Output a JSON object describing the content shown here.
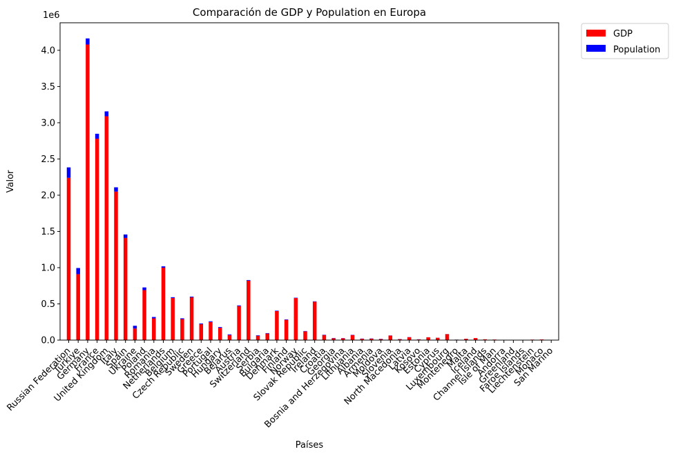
{
  "chart_data": {
    "type": "bar",
    "stacked": true,
    "title": "Comparación de GDP y Population en Europa",
    "xlabel": "Países",
    "ylabel": "Valor",
    "offset_text": "1e6",
    "ylim": [
      0,
      4.38
    ],
    "yticks": [
      0.0,
      0.5,
      1.0,
      1.5,
      2.0,
      2.5,
      3.0,
      3.5,
      4.0
    ],
    "ytick_labels": [
      "0.0",
      "0.5",
      "1.0",
      "1.5",
      "2.0",
      "2.5",
      "3.0",
      "3.5",
      "4.0"
    ],
    "legend_position": "upper-right-outside",
    "categories": [
      "Russian Federation",
      "Türkiye",
      "Germany",
      "France",
      "United Kingdom",
      "Italy",
      "Spain",
      "Ukraine",
      "Poland",
      "Romania",
      "Netherlands",
      "Belgium",
      "Czech Republic",
      "Sweden",
      "Greece",
      "Portugal",
      "Hungary",
      "Belarus",
      "Austria",
      "Switzerland",
      "Serbia",
      "Bulgaria",
      "Denmark",
      "Finland",
      "Norway",
      "Slovak Republic",
      "Ireland",
      "Croatia",
      "Georgia",
      "Bosnia and Herzegovina",
      "Lithuania",
      "Albania",
      "Armenia",
      "Moldova",
      "Slovenia",
      "North Macedonia",
      "Latvia",
      "Kosovo",
      "Estonia",
      "Cyprus",
      "Luxembourg",
      "Montenegro",
      "Malta",
      "Iceland",
      "Channel Islands",
      "Isle of Man",
      "Andorra",
      "Greenland",
      "Faroe Islands",
      "Liechtenstein",
      "Monaco",
      "San Marino"
    ],
    "series": [
      {
        "name": "GDP",
        "color": "#ff0000",
        "values": [
          2.24,
          0.91,
          4.08,
          2.78,
          3.09,
          2.05,
          1.41,
          0.16,
          0.69,
          0.3,
          1.0,
          0.58,
          0.29,
          0.59,
          0.22,
          0.25,
          0.17,
          0.07,
          0.47,
          0.82,
          0.06,
          0.09,
          0.4,
          0.28,
          0.58,
          0.12,
          0.53,
          0.07,
          0.025,
          0.025,
          0.07,
          0.018,
          0.02,
          0.014,
          0.062,
          0.013,
          0.04,
          0.009,
          0.038,
          0.032,
          0.082,
          0.006,
          0.018,
          0.028,
          0.011,
          0.008,
          0.004,
          0.003,
          0.003,
          0.007,
          0.009,
          0.002
        ]
      },
      {
        "name": "Population",
        "color": "#0000ff",
        "values": [
          0.144,
          0.085,
          0.084,
          0.068,
          0.067,
          0.059,
          0.048,
          0.038,
          0.037,
          0.019,
          0.018,
          0.012,
          0.011,
          0.01,
          0.01,
          0.01,
          0.01,
          0.009,
          0.009,
          0.009,
          0.007,
          0.006,
          0.006,
          0.006,
          0.005,
          0.005,
          0.005,
          0.004,
          0.004,
          0.003,
          0.003,
          0.003,
          0.003,
          0.003,
          0.002,
          0.002,
          0.002,
          0.002,
          0.001,
          0.001,
          0.001,
          0.001,
          0.001,
          0.0004,
          0.0002,
          0.0001,
          0.0001,
          0.0001,
          5e-05,
          4e-05,
          4e-05,
          3e-05
        ]
      }
    ]
  }
}
